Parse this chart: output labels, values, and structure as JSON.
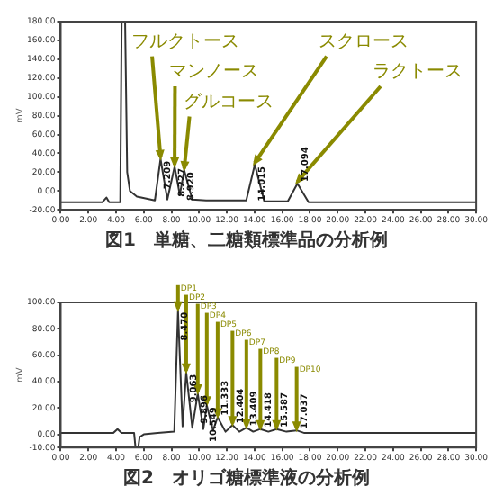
{
  "chart_data": [
    {
      "type": "line",
      "title": "図1　単糖、二糖類標準品の分析例",
      "ylabel": "mV",
      "x": [
        0,
        3.0,
        3.3,
        3.5,
        4.3,
        4.4,
        4.65,
        4.8,
        5.0,
        5.5,
        6.5,
        6.8,
        7.209,
        7.7,
        8.227,
        8.6,
        8.92,
        9.5,
        10.5,
        13.4,
        14.015,
        14.7,
        16.4,
        17.094,
        17.9,
        30
      ],
      "series": [
        {
          "color": "#333333",
          "values": [
            -12,
            -12,
            -7,
            -12,
            -12,
            180,
            180,
            20,
            0,
            -6,
            -9,
            -10,
            34,
            -9,
            26,
            -4,
            22,
            -9,
            -10,
            -10,
            28,
            -11,
            -11,
            8,
            -12,
            -12
          ]
        }
      ],
      "xlim": [
        0,
        30
      ],
      "xticks": [
        {
          "value": 0,
          "label": "0.00"
        },
        {
          "value": 2,
          "label": "2.00"
        },
        {
          "value": 4,
          "label": "4.00"
        },
        {
          "value": 6,
          "label": "6.00"
        },
        {
          "value": 8,
          "label": "8.00"
        },
        {
          "value": 10,
          "label": "10.00"
        },
        {
          "value": 12,
          "label": "12.00"
        },
        {
          "value": 14,
          "label": "14.00"
        },
        {
          "value": 16,
          "label": "16.00"
        },
        {
          "value": 18,
          "label": "18.00"
        },
        {
          "value": 20,
          "label": "20.00"
        },
        {
          "value": 22,
          "label": "22.00"
        },
        {
          "value": 24,
          "label": "24.00"
        },
        {
          "value": 26,
          "label": "26.00"
        },
        {
          "value": 28,
          "label": "28.00"
        },
        {
          "value": 30,
          "label": "30.00"
        }
      ],
      "ylim": [
        -20,
        180
      ],
      "yticks": [
        {
          "value": -20,
          "label": "-20.00"
        },
        {
          "value": 0,
          "label": "0.00"
        },
        {
          "value": 20,
          "label": "20.00"
        },
        {
          "value": 40,
          "label": "40.00"
        },
        {
          "value": 60,
          "label": "60.00"
        },
        {
          "value": 80,
          "label": "80.00"
        },
        {
          "value": 100,
          "label": "100.00"
        },
        {
          "value": 120,
          "label": "120.00"
        },
        {
          "value": 140,
          "label": "140.00"
        },
        {
          "value": 160,
          "label": "160.00"
        },
        {
          "value": 180,
          "label": "180.00"
        }
      ],
      "annotations": [
        {
          "text": "フルクトース",
          "x": 7.209,
          "y": 34
        },
        {
          "text": "マンノース",
          "x": 8.227,
          "y": 26
        },
        {
          "text": "グルコース",
          "x": 8.92,
          "y": 22
        },
        {
          "text": "スクロース",
          "x": 14.015,
          "y": 28
        },
        {
          "text": "ラクトース",
          "x": 17.094,
          "y": 8
        },
        {
          "text": "7.209",
          "x": 7.209,
          "y": 34
        },
        {
          "text": "8.227",
          "x": 8.227,
          "y": 26
        },
        {
          "text": "8.920",
          "x": 8.92,
          "y": 22
        },
        {
          "text": "14.015",
          "x": 14.015,
          "y": 28
        },
        {
          "text": "17.094",
          "x": 17.094,
          "y": 8
        }
      ]
    },
    {
      "type": "line",
      "title": "図2　オリゴ糖標準液の分析例",
      "ylabel": "mV",
      "x": [
        0,
        3.8,
        4.1,
        4.4,
        5.3,
        5.4,
        5.6,
        5.7,
        6,
        7,
        8.2,
        8.47,
        8.8,
        9.063,
        9.5,
        9.896,
        10.3,
        10.549,
        11.0,
        11.333,
        11.9,
        12.404,
        12.9,
        13.409,
        13.9,
        14.418,
        15.0,
        15.587,
        16.3,
        17.037,
        17.6,
        30
      ],
      "series": [
        {
          "color": "#333333",
          "values": [
            1,
            1,
            4,
            1,
            1,
            -10,
            -10,
            -2,
            0,
            1,
            2,
            94,
            6,
            47,
            5,
            31,
            4,
            22,
            3,
            13,
            2,
            7,
            2,
            5,
            2,
            4,
            2,
            4,
            2,
            3,
            1,
            1
          ]
        }
      ],
      "xlim": [
        0,
        30
      ],
      "xticks": [
        {
          "value": 0,
          "label": "0.00"
        },
        {
          "value": 2,
          "label": "2.00"
        },
        {
          "value": 4,
          "label": "4.00"
        },
        {
          "value": 6,
          "label": "6.00"
        },
        {
          "value": 8,
          "label": "8.00"
        },
        {
          "value": 10,
          "label": "10.00"
        },
        {
          "value": 12,
          "label": "12.00"
        },
        {
          "value": 14,
          "label": "14.00"
        },
        {
          "value": 16,
          "label": "16.00"
        },
        {
          "value": 18,
          "label": "18.00"
        },
        {
          "value": 20,
          "label": "20.00"
        },
        {
          "value": 22,
          "label": "22.00"
        },
        {
          "value": 24,
          "label": "24.00"
        },
        {
          "value": 26,
          "label": "26.00"
        },
        {
          "value": 28,
          "label": "28.00"
        },
        {
          "value": 30,
          "label": "30.00"
        }
      ],
      "ylim": [
        -10,
        100
      ],
      "yticks": [
        {
          "value": -10,
          "label": "-10.00"
        },
        {
          "value": 0,
          "label": "0.00"
        },
        {
          "value": 20,
          "label": "20.00"
        },
        {
          "value": 40,
          "label": "40.00"
        },
        {
          "value": 60,
          "label": "60.00"
        },
        {
          "value": 80,
          "label": "80.00"
        },
        {
          "value": 100,
          "label": "100.00"
        }
      ],
      "annotations": [
        {
          "text": "DP1",
          "x": 8.47,
          "y": 94
        },
        {
          "text": "DP2",
          "x": 9.063,
          "y": 47
        },
        {
          "text": "DP3",
          "x": 9.896,
          "y": 31
        },
        {
          "text": "DP4",
          "x": 10.549,
          "y": 22
        },
        {
          "text": "DP5",
          "x": 11.333,
          "y": 13
        },
        {
          "text": "DP6",
          "x": 12.404,
          "y": 7
        },
        {
          "text": "DP7",
          "x": 13.409,
          "y": 5
        },
        {
          "text": "DP8",
          "x": 14.418,
          "y": 4
        },
        {
          "text": "DP9",
          "x": 15.587,
          "y": 4
        },
        {
          "text": "DP10",
          "x": 17.037,
          "y": 3
        },
        {
          "text": "8.470",
          "x": 8.47,
          "y": 94
        },
        {
          "text": "9.063",
          "x": 9.063,
          "y": 47
        },
        {
          "text": "9.896",
          "x": 9.896,
          "y": 31
        },
        {
          "text": "10.549",
          "x": 10.549,
          "y": 22
        },
        {
          "text": "11.333",
          "x": 11.333,
          "y": 13
        },
        {
          "text": "12.404",
          "x": 12.404,
          "y": 7
        },
        {
          "text": "13.409",
          "x": 13.409,
          "y": 5
        },
        {
          "text": "14.418",
          "x": 14.418,
          "y": 4
        },
        {
          "text": "15.587",
          "x": 15.587,
          "y": 4
        },
        {
          "text": "17.037",
          "x": 17.037,
          "y": 3
        }
      ]
    }
  ]
}
